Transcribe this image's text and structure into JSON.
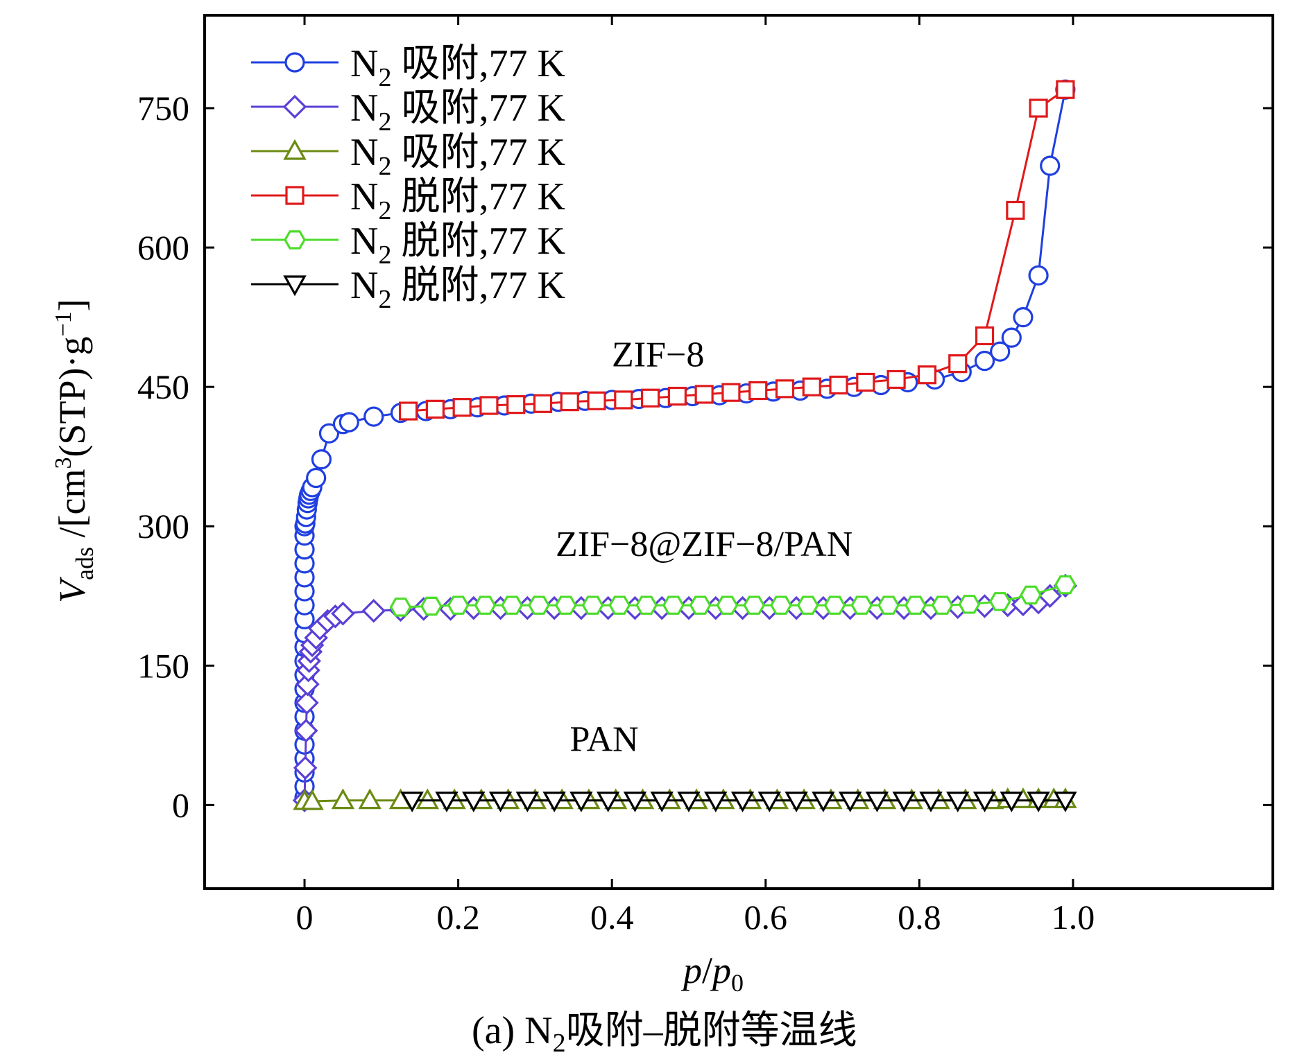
{
  "chart_data": {
    "type": "line",
    "xlabel_italic_1": "p",
    "xlabel_sep": "/",
    "xlabel_italic_2": "p",
    "xlabel_sub": "0",
    "ylabel_var": "V",
    "ylabel_var_sub": "ads",
    "ylabel_unit_1": " /[cm",
    "ylabel_unit_sup": "3",
    "ylabel_unit_2": "(STP)·g",
    "ylabel_unit_sup2": "−1",
    "ylabel_unit_3": "]",
    "xlim": [
      -0.13,
      1.26
    ],
    "ylim": [
      -90,
      850
    ],
    "xticks": [
      0,
      0.2,
      0.4,
      0.6,
      0.8,
      1.0
    ],
    "xtick_labels": [
      "0",
      "0.2",
      "0.4",
      "0.6",
      "0.8",
      "1.0"
    ],
    "yticks": [
      0,
      150,
      300,
      450,
      600,
      750
    ],
    "ytick_labels": [
      "0",
      "150",
      "300",
      "450",
      "600",
      "750"
    ],
    "caption_prefix": "(a) N",
    "caption_sub": "2",
    "caption_suffix": "吸附–脱附等温线",
    "annotations": [
      {
        "text": "ZIF−8",
        "x": 0.46,
        "y": 472
      },
      {
        "text": "ZIF−8@ZIF−8/PAN",
        "x": 0.52,
        "y": 268
      },
      {
        "text": "PAN",
        "x": 0.39,
        "y": 58
      }
    ],
    "series": [
      {
        "legend_prefix": "N",
        "legend_sub": "2",
        "legend_suffix": " 吸附,77 K",
        "color": "#1f3fe0",
        "marker": "circle",
        "x": [
          0.0,
          0.0,
          0.0,
          0.0,
          0.0,
          0.0,
          0.0,
          0.0,
          0.0,
          0.0,
          0.0,
          0.0,
          0.0,
          0.0,
          0.0,
          0.0,
          0.0,
          0.0,
          0.0,
          0.0,
          0.0,
          0.001,
          0.002,
          0.003,
          0.004,
          0.005,
          0.006,
          0.008,
          0.01,
          0.015,
          0.022,
          0.032,
          0.05,
          0.058,
          0.09,
          0.125,
          0.158,
          0.19,
          0.225,
          0.26,
          0.295,
          0.33,
          0.365,
          0.4,
          0.435,
          0.47,
          0.505,
          0.54,
          0.575,
          0.61,
          0.645,
          0.68,
          0.715,
          0.75,
          0.785,
          0.82,
          0.855,
          0.885,
          0.905,
          0.92,
          0.935,
          0.955,
          0.97,
          0.99
        ],
        "y": [
          8,
          20,
          35,
          50,
          65,
          80,
          95,
          110,
          125,
          140,
          155,
          170,
          185,
          200,
          215,
          230,
          245,
          260,
          275,
          290,
          300,
          303,
          310,
          318,
          325,
          330,
          334,
          338,
          342,
          352,
          372,
          400,
          410,
          412,
          418,
          422,
          424,
          426,
          428,
          430,
          432,
          434,
          435,
          436,
          437,
          438,
          440,
          441,
          443,
          445,
          446,
          448,
          450,
          452,
          455,
          458,
          466,
          478,
          488,
          503,
          525,
          570,
          688,
          770
        ]
      },
      {
        "legend_prefix": "N",
        "legend_sub": "2",
        "legend_suffix": " 吸附,77 K",
        "color": "#5b3fd6",
        "marker": "diamond",
        "x": [
          0.0,
          0.001,
          0.002,
          0.003,
          0.004,
          0.005,
          0.006,
          0.008,
          0.01,
          0.015,
          0.02,
          0.03,
          0.04,
          0.05,
          0.09,
          0.125,
          0.155,
          0.19,
          0.22,
          0.255,
          0.29,
          0.325,
          0.36,
          0.395,
          0.43,
          0.465,
          0.5,
          0.535,
          0.57,
          0.605,
          0.64,
          0.675,
          0.71,
          0.745,
          0.78,
          0.815,
          0.85,
          0.885,
          0.915,
          0.935,
          0.955,
          0.97,
          0.99
        ],
        "y": [
          5,
          40,
          80,
          110,
          130,
          145,
          155,
          165,
          172,
          180,
          190,
          198,
          203,
          206,
          209,
          210,
          211,
          211,
          212,
          212,
          212,
          212,
          212,
          212,
          212,
          212,
          212,
          212,
          212,
          212,
          212,
          212,
          212,
          212,
          212,
          212,
          213,
          214,
          215,
          216,
          218,
          225,
          236
        ]
      },
      {
        "legend_prefix": "N",
        "legend_sub": "2",
        "legend_suffix": " 吸附,77 K",
        "color": "#6b8a12",
        "marker": "triangle-up",
        "x": [
          0.0,
          0.01,
          0.05,
          0.085,
          0.125,
          0.16,
          0.195,
          0.23,
          0.265,
          0.3,
          0.335,
          0.37,
          0.405,
          0.44,
          0.475,
          0.51,
          0.545,
          0.58,
          0.615,
          0.65,
          0.685,
          0.72,
          0.755,
          0.79,
          0.825,
          0.86,
          0.895,
          0.915,
          0.935,
          0.955,
          0.975,
          0.99
        ],
        "y": [
          4,
          4,
          5,
          5,
          5,
          5,
          5,
          5,
          5,
          5,
          5,
          5,
          5,
          5,
          5,
          5,
          5,
          5,
          5,
          5,
          5,
          5,
          5,
          5,
          5,
          5,
          5,
          6,
          6,
          6,
          6,
          6
        ]
      },
      {
        "legend_prefix": "N",
        "legend_sub": "2",
        "legend_suffix": " 脱附,77 K",
        "color": "#e0191b",
        "marker": "square",
        "x": [
          0.99,
          0.955,
          0.925,
          0.885,
          0.85,
          0.81,
          0.77,
          0.73,
          0.695,
          0.66,
          0.625,
          0.59,
          0.555,
          0.52,
          0.485,
          0.45,
          0.415,
          0.38,
          0.345,
          0.31,
          0.275,
          0.24,
          0.205,
          0.17,
          0.135
        ],
        "y": [
          770,
          750,
          640,
          505,
          475,
          463,
          458,
          455,
          452,
          450,
          448,
          446,
          444,
          442,
          440,
          438,
          436,
          435,
          434,
          432,
          431,
          430,
          428,
          426,
          424
        ]
      },
      {
        "legend_prefix": "N",
        "legend_sub": "2",
        "legend_suffix": " 脱附,77 K",
        "color": "#4cdc2a",
        "marker": "hexagon",
        "x": [
          0.99,
          0.945,
          0.905,
          0.865,
          0.83,
          0.795,
          0.76,
          0.725,
          0.69,
          0.655,
          0.62,
          0.585,
          0.55,
          0.515,
          0.48,
          0.445,
          0.41,
          0.375,
          0.34,
          0.305,
          0.27,
          0.235,
          0.2,
          0.165,
          0.125
        ],
        "y": [
          237,
          226,
          219,
          216,
          215,
          215,
          215,
          215,
          215,
          215,
          215,
          215,
          215,
          215,
          215,
          215,
          215,
          215,
          215,
          215,
          215,
          215,
          215,
          214,
          213
        ]
      },
      {
        "legend_prefix": "N",
        "legend_sub": "2",
        "legend_suffix": " 脱附,77 K",
        "color": "#000000",
        "marker": "triangle-down",
        "x": [
          0.99,
          0.955,
          0.92,
          0.885,
          0.85,
          0.815,
          0.78,
          0.745,
          0.71,
          0.675,
          0.64,
          0.605,
          0.57,
          0.535,
          0.5,
          0.465,
          0.43,
          0.395,
          0.36,
          0.325,
          0.29,
          0.255,
          0.22,
          0.185,
          0.14
        ],
        "y": [
          5,
          5,
          5,
          5,
          5,
          5,
          5,
          5,
          5,
          5,
          5,
          5,
          5,
          5,
          5,
          5,
          5,
          5,
          5,
          5,
          5,
          5,
          5,
          5,
          5
        ]
      }
    ]
  }
}
